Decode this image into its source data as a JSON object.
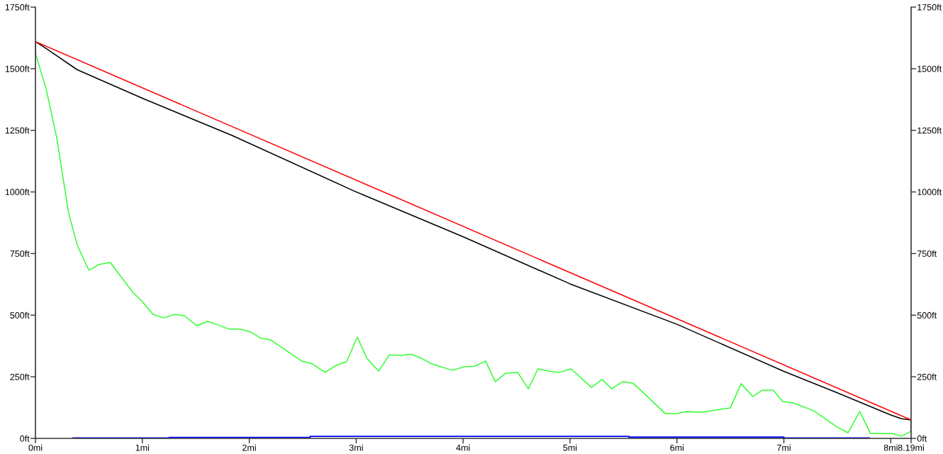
{
  "chart_data": {
    "type": "line",
    "xlim": [
      0,
      8.19
    ],
    "xticks": [
      {
        "value": 0,
        "label": "0mi"
      },
      {
        "value": 1,
        "label": "1mi"
      },
      {
        "value": 2,
        "label": "2mi"
      },
      {
        "value": 3,
        "label": "3mi"
      },
      {
        "value": 4,
        "label": "4mi"
      },
      {
        "value": 5,
        "label": "5mi"
      },
      {
        "value": 6,
        "label": "6mi"
      },
      {
        "value": 7,
        "label": "7mi"
      },
      {
        "value": 8,
        "label": "8mi"
      },
      {
        "value": 8.19,
        "label": "8.19mi"
      }
    ],
    "ylim": [
      0,
      1750
    ],
    "yticks": [
      {
        "value": 0,
        "label": "0ft"
      },
      {
        "value": 250,
        "label": "250ft"
      },
      {
        "value": 500,
        "label": "500ft"
      },
      {
        "value": 750,
        "label": "750ft"
      },
      {
        "value": 1000,
        "label": "1000ft"
      },
      {
        "value": 1250,
        "label": "1250ft"
      },
      {
        "value": 1500,
        "label": "1500ft"
      },
      {
        "value": 1750,
        "label": "1750ft"
      }
    ],
    "y2lim": [
      0,
      1750
    ],
    "y2ticks": [
      {
        "value": 0,
        "label": "0ft"
      },
      {
        "value": 250,
        "label": "250ft"
      },
      {
        "value": 500,
        "label": "500ft"
      },
      {
        "value": 750,
        "label": "750ft"
      },
      {
        "value": 1000,
        "label": "1000ft"
      },
      {
        "value": 1250,
        "label": "1250ft"
      },
      {
        "value": 1500,
        "label": "1500ft"
      },
      {
        "value": 1750,
        "label": "1750ft"
      }
    ],
    "grid": false,
    "legend": false,
    "series": [
      {
        "type": "step",
        "color": "#0000ff",
        "x": [
          0.35,
          1.25,
          2.57,
          5.55,
          7.0,
          7.8
        ],
        "values": [
          2,
          4,
          8,
          5,
          2,
          2
        ]
      },
      {
        "color": "#33ff33",
        "x": [
          0,
          0.1,
          0.2,
          0.31,
          0.39,
          0.5,
          0.59,
          0.7,
          0.91,
          1.0,
          1.1,
          1.2,
          1.3,
          1.39,
          1.51,
          1.61,
          1.69,
          1.81,
          1.92,
          2.01,
          2.11,
          2.2,
          2.49,
          2.59,
          2.71,
          2.81,
          2.91,
          3.01,
          3.1,
          3.21,
          3.31,
          3.43,
          3.51,
          3.61,
          3.71,
          3.9,
          4.01,
          4.11,
          4.21,
          4.3,
          4.4,
          4.51,
          4.61,
          4.7,
          4.8,
          4.9,
          5.01,
          5.2,
          5.3,
          5.39,
          5.49,
          5.59,
          5.89,
          5.99,
          6.09,
          6.23,
          6.32,
          6.5,
          6.6,
          6.71,
          6.8,
          6.9,
          6.99,
          7.09,
          7.28,
          7.51,
          7.6,
          7.71,
          7.81,
          8.01,
          8.1,
          8.19
        ],
        "values": [
          1562,
          1418,
          1217,
          915,
          785,
          682,
          705,
          714,
          593,
          555,
          503,
          489,
          503,
          498,
          457,
          475,
          463,
          443,
          443,
          432,
          406,
          400,
          314,
          302,
          268,
          296,
          311,
          411,
          325,
          273,
          339,
          337,
          342,
          325,
          302,
          276,
          291,
          293,
          314,
          230,
          265,
          268,
          201,
          282,
          273,
          268,
          282,
          207,
          239,
          201,
          230,
          224,
          101,
          101,
          109,
          106,
          112,
          124,
          222,
          170,
          196,
          196,
          150,
          144,
          112,
          43,
          23,
          109,
          20,
          20,
          9,
          29
        ]
      },
      {
        "color": "#000000",
        "x": [
          0,
          0,
          0.11,
          0.39,
          1.0,
          1.84,
          3.0,
          4.0,
          5.0,
          6.0,
          7.0,
          7.5,
          8.0,
          8.1,
          8.19,
          8.19
        ],
        "values": [
          1557,
          1610,
          1579,
          1496,
          1380,
          1229,
          1000,
          818,
          627,
          463,
          272,
          185,
          95,
          80,
          75,
          29
        ]
      },
      {
        "color": "#ff0000",
        "x": [
          0,
          8.19
        ],
        "values": [
          1610,
          75
        ]
      }
    ]
  }
}
